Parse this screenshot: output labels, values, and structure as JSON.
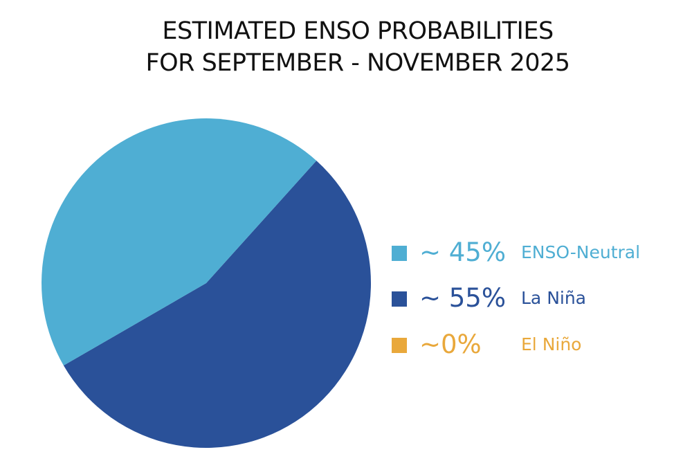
{
  "chart_data": {
    "type": "pie",
    "title": "ESTIMATED ENSO PROBABILITIES",
    "subtitle": "FOR SEPTEMBER - NOVEMBER 2025",
    "slices": [
      {
        "label": "ENSO-Neutral",
        "value": 45,
        "display": "~ 45%",
        "color": "#4faed3"
      },
      {
        "label": "La Niña",
        "value": 55,
        "display": "~ 55%",
        "color": "#2a5199"
      },
      {
        "label": "El Niño",
        "value": 0,
        "display": "~0%",
        "color": "#e9a83b"
      }
    ],
    "legend_position": "right"
  }
}
